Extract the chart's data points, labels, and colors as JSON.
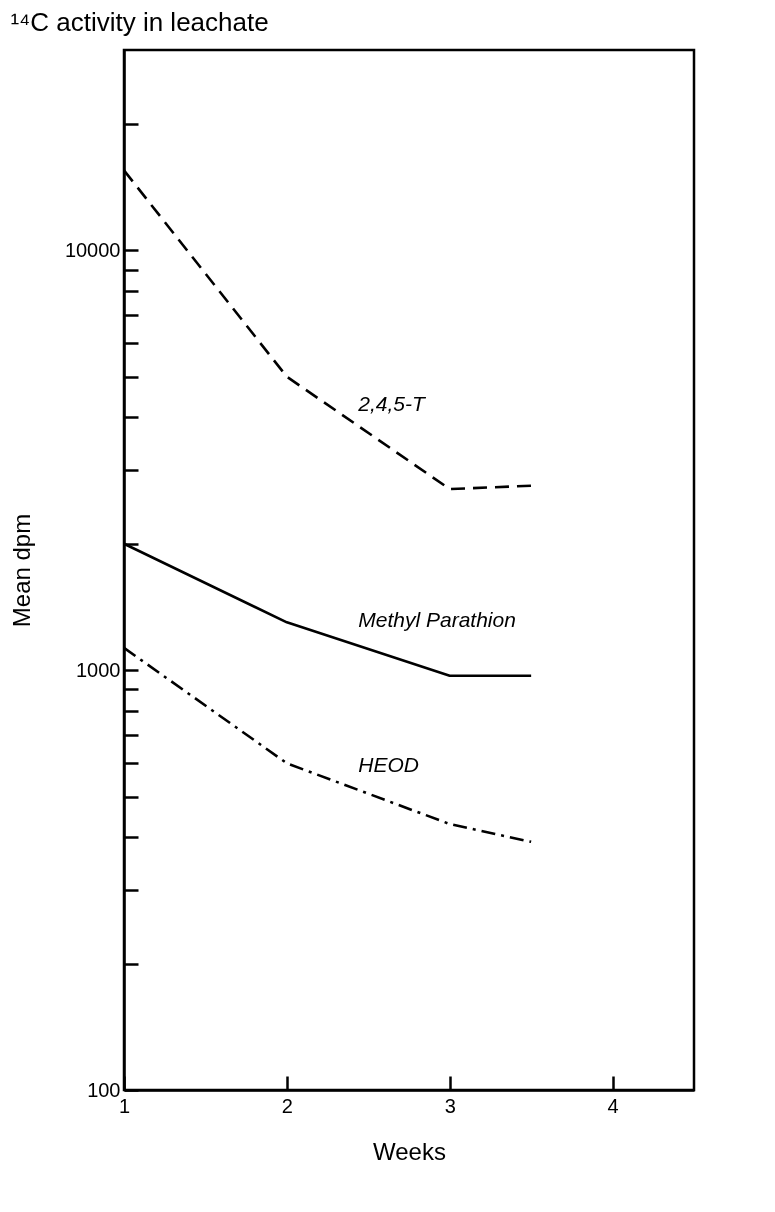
{
  "chart_data": {
    "type": "line",
    "title": "¹⁴C activity in leachate",
    "xlabel": "Weeks",
    "ylabel": "Mean dpm",
    "x": [
      1,
      2,
      3,
      3.5
    ],
    "series": [
      {
        "name": "2,4,5-T",
        "color": "#000000",
        "line_style": "dashed",
        "values": [
          15500,
          5000,
          2700,
          2750
        ]
      },
      {
        "name": "Methyl Parathion",
        "color": "#000000",
        "line_style": "solid",
        "values": [
          2000,
          1300,
          970,
          970
        ]
      },
      {
        "name": "HEOD",
        "color": "#000000",
        "line_style": "dashdot",
        "values": [
          1130,
          600,
          430,
          390
        ]
      }
    ],
    "log": true,
    "grid": false,
    "legend": false,
    "marker": "none",
    "xlim": [
      1,
      4.5
    ],
    "xticks": [
      1,
      2,
      3,
      4
    ],
    "ylim": [
      100,
      30000
    ],
    "yticks": [
      100,
      {
        "value": 200,
        "label": null
      },
      {
        "value": 300,
        "label": null
      },
      {
        "value": 400,
        "label": null
      },
      {
        "value": 500,
        "label": null
      },
      {
        "value": 600,
        "label": null
      },
      {
        "value": 700,
        "label": null
      },
      {
        "value": 800,
        "label": null
      },
      {
        "value": 900,
        "label": null
      },
      1000,
      {
        "value": 2000,
        "label": null
      },
      {
        "value": 3000,
        "label": null
      },
      {
        "value": 4000,
        "label": null
      },
      {
        "value": 5000,
        "label": null
      },
      {
        "value": 6000,
        "label": null
      },
      {
        "value": 7000,
        "label": null
      },
      {
        "value": 8000,
        "label": null
      },
      {
        "value": 9000,
        "label": null
      },
      10000,
      {
        "value": 20000,
        "label": null
      }
    ]
  }
}
